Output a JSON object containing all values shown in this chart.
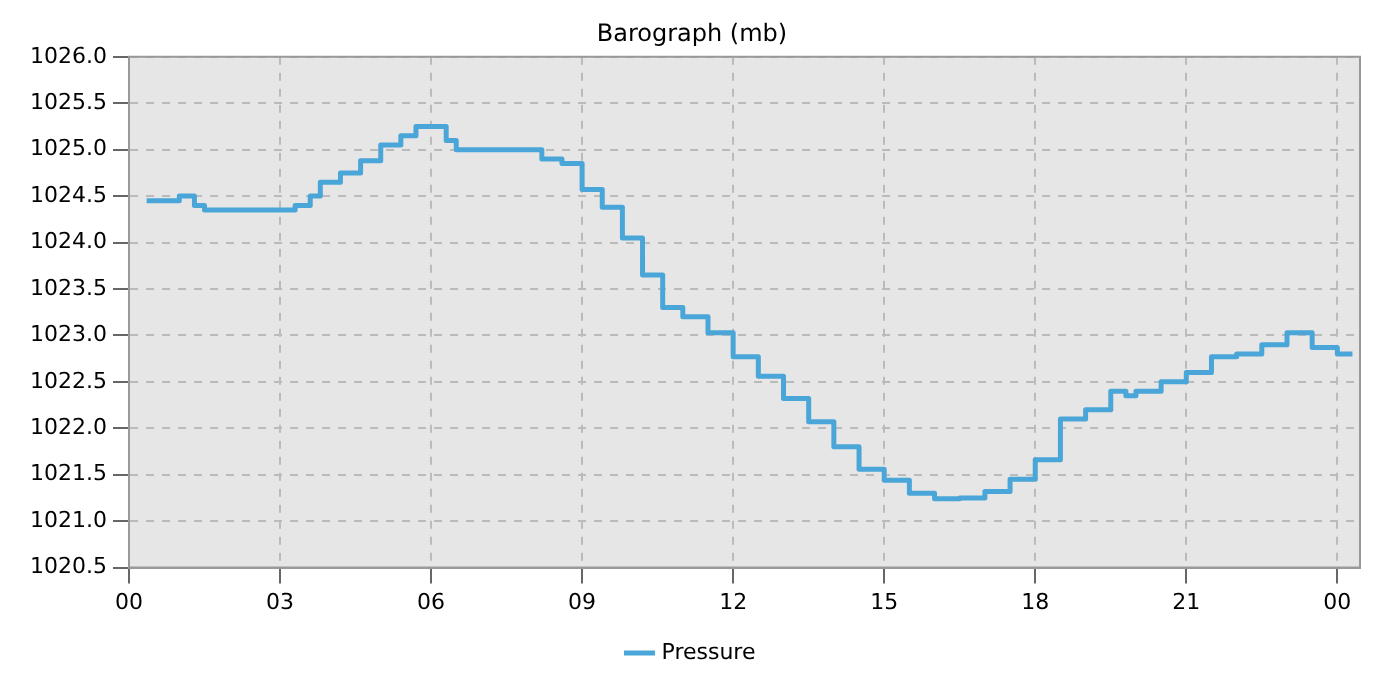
{
  "chart_data": {
    "type": "step",
    "title": "Barograph (mb)",
    "x": [
      0.35,
      0.5,
      1.0,
      1.3,
      1.5,
      2.0,
      2.5,
      3.0,
      3.3,
      3.6,
      3.8,
      4.2,
      4.6,
      5.0,
      5.4,
      5.7,
      6.0,
      6.3,
      6.5,
      7.0,
      8.0,
      8.2,
      8.6,
      9.0,
      9.4,
      9.8,
      10.2,
      10.6,
      11.0,
      11.5,
      12.0,
      12.5,
      13.0,
      13.5,
      14.0,
      14.5,
      15.0,
      15.5,
      16.0,
      16.5,
      17.0,
      17.5,
      18.0,
      18.5,
      19.0,
      19.5,
      19.8,
      20.0,
      20.5,
      21.0,
      21.5,
      22.0,
      22.5,
      23.0,
      23.5,
      24.0,
      24.3
    ],
    "series": [
      {
        "name": "Pressure",
        "color": "#4aa6d8",
        "values": [
          1024.45,
          1024.45,
          1024.5,
          1024.4,
          1024.35,
          1024.35,
          1024.35,
          1024.35,
          1024.4,
          1024.5,
          1024.65,
          1024.75,
          1024.88,
          1025.05,
          1025.15,
          1025.25,
          1025.25,
          1025.1,
          1025.0,
          1025.0,
          1025.0,
          1024.9,
          1024.85,
          1024.57,
          1024.38,
          1024.05,
          1023.65,
          1023.3,
          1023.2,
          1023.03,
          1022.77,
          1022.56,
          1022.32,
          1022.07,
          1021.8,
          1021.56,
          1021.44,
          1021.3,
          1021.24,
          1021.25,
          1021.32,
          1021.45,
          1021.66,
          1022.1,
          1022.2,
          1022.4,
          1022.35,
          1022.4,
          1022.5,
          1022.6,
          1022.77,
          1022.8,
          1022.9,
          1023.03,
          1022.87,
          1022.8,
          1022.8
        ]
      }
    ],
    "xlim": [
      0,
      24.45
    ],
    "xticks": [
      {
        "value": 0,
        "label": "00"
      },
      {
        "value": 3,
        "label": "03"
      },
      {
        "value": 6,
        "label": "06"
      },
      {
        "value": 9,
        "label": "09"
      },
      {
        "value": 12,
        "label": "12"
      },
      {
        "value": 15,
        "label": "15"
      },
      {
        "value": 18,
        "label": "18"
      },
      {
        "value": 21,
        "label": "21"
      },
      {
        "value": 24,
        "label": "00"
      }
    ],
    "ylim": [
      1020.5,
      1026.0
    ],
    "yticks": [
      {
        "value": 1020.5,
        "label": "1020.5"
      },
      {
        "value": 1021.0,
        "label": "1021.0"
      },
      {
        "value": 1021.5,
        "label": "1021.5"
      },
      {
        "value": 1022.0,
        "label": "1022.0"
      },
      {
        "value": 1022.5,
        "label": "1022.5"
      },
      {
        "value": 1023.0,
        "label": "1023.0"
      },
      {
        "value": 1023.5,
        "label": "1023.5"
      },
      {
        "value": 1024.0,
        "label": "1024.0"
      },
      {
        "value": 1024.5,
        "label": "1024.5"
      },
      {
        "value": 1025.0,
        "label": "1025.0"
      },
      {
        "value": 1025.5,
        "label": "1025.5"
      },
      {
        "value": 1026.0,
        "label": "1026.0"
      }
    ],
    "grid": true,
    "legend": "bottom",
    "marker": "none",
    "line_style": "solid"
  }
}
